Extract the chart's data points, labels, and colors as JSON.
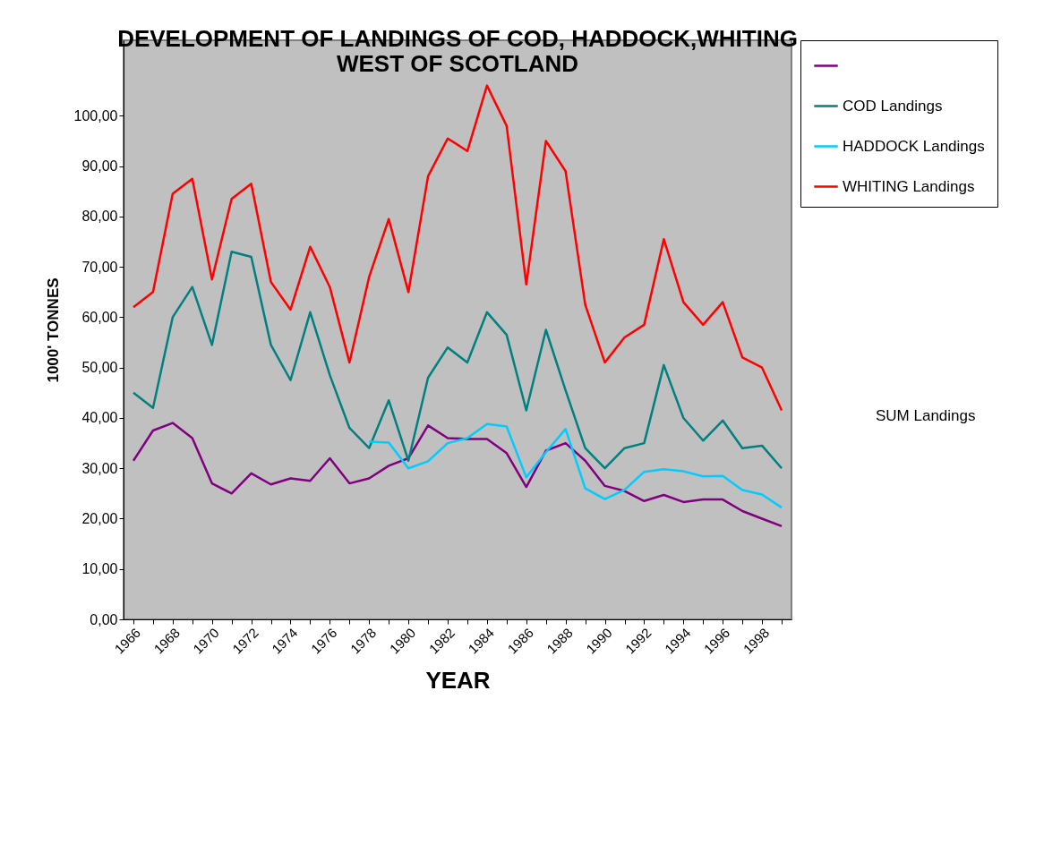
{
  "chart_data": {
    "type": "line",
    "title": "DEVELOPMENT OF LANDINGS OF COD, HADDOCK,WHITING\nWEST OF SCOTLAND",
    "xlabel": "YEAR",
    "ylabel": "1000' TONNES",
    "categories": [
      "1966",
      null,
      "1968",
      null,
      "1970",
      null,
      "1972",
      null,
      "1974",
      null,
      "1976",
      null,
      "1978",
      null,
      "1980",
      null,
      "1982",
      null,
      "1984",
      null,
      "1986",
      null,
      "1988",
      null,
      "1990",
      null,
      "1992",
      null,
      "1994",
      null,
      "1996",
      null,
      "1998",
      null
    ],
    "ylim": [
      0,
      115
    ],
    "yticks": [
      {
        "value": 0,
        "label": "0,00"
      },
      {
        "value": 10,
        "label": "10,00"
      },
      {
        "value": 20,
        "label": "20,00"
      },
      {
        "value": 30,
        "label": "30,00"
      },
      {
        "value": 40,
        "label": "40,00"
      },
      {
        "value": 50,
        "label": "50,00"
      },
      {
        "value": 60,
        "label": "60,00"
      },
      {
        "value": 70,
        "label": "70,00"
      },
      {
        "value": 80,
        "label": "80,00"
      },
      {
        "value": 90,
        "label": "90,00"
      },
      {
        "value": 100,
        "label": "100,00"
      }
    ],
    "series": [
      {
        "color": "#800080",
        "values": [
          31.5,
          37.5,
          39,
          36,
          27,
          25,
          29,
          26.8,
          28,
          27.5,
          32,
          27,
          28,
          30.5,
          32,
          38.5,
          36,
          35.8,
          35.8,
          33,
          26.3,
          33.5,
          35,
          31.5,
          26.5,
          25.5,
          23.5,
          24.7,
          23.3,
          23.8,
          23.8,
          21.5,
          20,
          18.5
        ]
      },
      {
        "name": "COD Landings",
        "color": "#008080",
        "values": [
          45,
          42,
          60,
          66,
          54.5,
          73,
          72,
          54.5,
          47.5,
          61,
          48.5,
          38,
          34,
          43.5,
          31.5,
          48,
          54,
          51,
          61,
          56.5,
          41.5,
          57.5,
          45.5,
          34,
          30,
          34,
          35,
          50.5,
          40,
          35.5,
          39.5,
          34,
          34.5,
          30
        ]
      },
      {
        "name": "HADDOCK Landings",
        "color": "#00ccff",
        "values": [
          null,
          null,
          null,
          null,
          null,
          null,
          null,
          null,
          null,
          null,
          null,
          null,
          35.3,
          35.1,
          30,
          31.4,
          35,
          36,
          38.8,
          38.3,
          28.2,
          33.2,
          37.8,
          26,
          23.9,
          25.7,
          29.3,
          29.8,
          29.4,
          28.4,
          28.5,
          25.7,
          24.8,
          22.2
        ]
      },
      {
        "name": "WHITING Landings",
        "color": "#ff0000",
        "values": [
          62,
          65,
          84.5,
          87.5,
          67.5,
          83.5,
          86.5,
          67,
          61.5,
          74,
          66,
          51,
          68,
          79.5,
          65,
          88,
          95.5,
          93,
          106,
          98,
          66.5,
          95,
          89,
          62.5,
          51,
          56,
          58.5,
          75.5,
          63,
          58.5,
          63,
          52,
          50,
          41.5
        ]
      }
    ],
    "annotations": [
      "SUM Landings"
    ],
    "legend": "right"
  }
}
